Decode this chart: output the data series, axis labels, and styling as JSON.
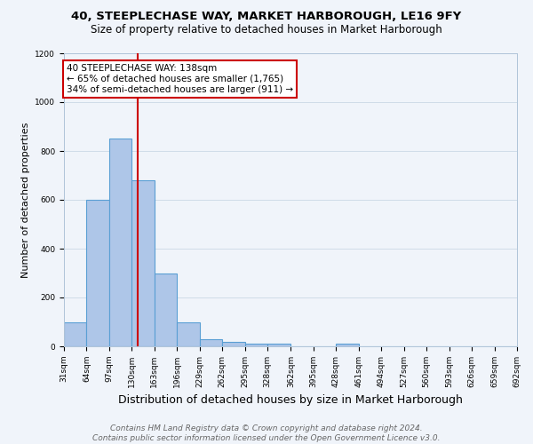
{
  "title": "40, STEEPLECHASE WAY, MARKET HARBOROUGH, LE16 9FY",
  "subtitle": "Size of property relative to detached houses in Market Harborough",
  "xlabel": "Distribution of detached houses by size in Market Harborough",
  "ylabel": "Number of detached properties",
  "footer_line1": "Contains HM Land Registry data © Crown copyright and database right 2024.",
  "footer_line2": "Contains public sector information licensed under the Open Government Licence v3.0.",
  "bin_edges": [
    31,
    64,
    97,
    130,
    163,
    196,
    229,
    262,
    295,
    328,
    362,
    395,
    428,
    461,
    494,
    527,
    560,
    593,
    626,
    659,
    692
  ],
  "bar_heights": [
    100,
    600,
    850,
    680,
    300,
    100,
    30,
    20,
    10,
    10,
    0,
    0,
    10,
    0,
    0,
    0,
    0,
    0,
    0,
    0
  ],
  "bar_color": "#aec6e8",
  "bar_edge_color": "#5a9fd4",
  "property_size": 138,
  "vline_color": "#cc0000",
  "annotation_text_line1": "40 STEEPLECHASE WAY: 138sqm",
  "annotation_text_line2": "← 65% of detached houses are smaller (1,765)",
  "annotation_text_line3": "34% of semi-detached houses are larger (911) →",
  "annotation_box_color": "#cc0000",
  "annotation_fill": "#ffffff",
  "ylim": [
    0,
    1200
  ],
  "yticks": [
    0,
    200,
    400,
    600,
    800,
    1000,
    1200
  ],
  "grid_color": "#d0dce8",
  "bg_color": "#f0f4fa",
  "title_fontsize": 9.5,
  "subtitle_fontsize": 8.5,
  "xlabel_fontsize": 9,
  "ylabel_fontsize": 8,
  "annotation_fontsize": 7.5,
  "footer_fontsize": 6.5,
  "tick_fontsize": 6.5
}
